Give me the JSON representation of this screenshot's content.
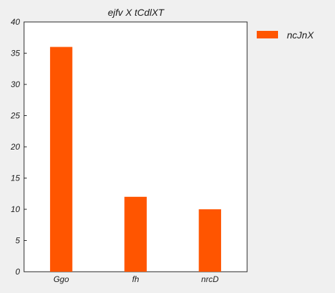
{
  "chart_data": {
    "type": "bar",
    "title": "ejfv X tCdlXT",
    "categories": [
      "Ggo",
      "fh",
      "nrcD"
    ],
    "series": [
      {
        "name": "ncJnX",
        "values": [
          36,
          12,
          10
        ],
        "color": "#ff5500"
      }
    ],
    "xlabel": "",
    "ylabel": "",
    "ylim": [
      0,
      40
    ],
    "yticks": [
      0,
      5,
      10,
      15,
      20,
      25,
      30,
      35,
      40
    ],
    "grid": false,
    "legend_position": "right-top"
  }
}
